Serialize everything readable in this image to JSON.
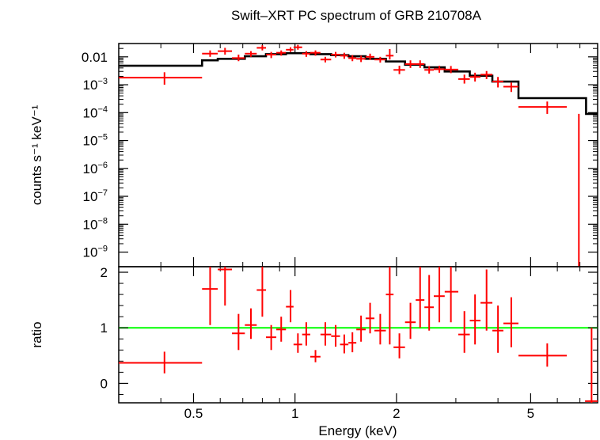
{
  "chart_data": {
    "type": "scatter",
    "title": "Swift–XRT PC spectrum of GRB 210708A",
    "xlabel": "Energy (keV)",
    "x_scale": "log",
    "xlim": [
      0.3,
      7.9
    ],
    "colors": {
      "data": "#ff0000",
      "model": "#000000",
      "unity": "#00ff00"
    },
    "top_panel": {
      "ylabel": "counts s⁻¹ keV⁻¹",
      "y_scale": "log",
      "ylim": [
        3e-10,
        0.03
      ],
      "y_ticks": [
        {
          "v": 0.01,
          "base": "0.01",
          "sup": ""
        },
        {
          "v": 0.001,
          "base": "10",
          "sup": "−3"
        },
        {
          "v": 0.0001,
          "base": "10",
          "sup": "−4"
        },
        {
          "v": 1e-05,
          "base": "10",
          "sup": "−5"
        },
        {
          "v": 1e-06,
          "base": "10",
          "sup": "−6"
        },
        {
          "v": 1e-07,
          "base": "10",
          "sup": "−7"
        },
        {
          "v": 1e-08,
          "base": "10",
          "sup": "−8"
        },
        {
          "v": 1e-09,
          "base": "10",
          "sup": "−9"
        }
      ],
      "data": [
        {
          "xlo": 0.3,
          "xhi": 0.53,
          "x": 0.41,
          "y": 0.0018,
          "ylo": 0.001,
          "yhi": 0.0028
        },
        {
          "xlo": 0.53,
          "xhi": 0.59,
          "x": 0.56,
          "y": 0.013,
          "ylo": 0.01,
          "yhi": 0.017
        },
        {
          "xlo": 0.59,
          "xhi": 0.65,
          "x": 0.62,
          "y": 0.016,
          "ylo": 0.012,
          "yhi": 0.021
        },
        {
          "xlo": 0.65,
          "xhi": 0.71,
          "x": 0.68,
          "y": 0.009,
          "ylo": 0.007,
          "yhi": 0.012
        },
        {
          "xlo": 0.71,
          "xhi": 0.77,
          "x": 0.74,
          "y": 0.013,
          "ylo": 0.01,
          "yhi": 0.016
        },
        {
          "xlo": 0.77,
          "xhi": 0.82,
          "x": 0.8,
          "y": 0.021,
          "ylo": 0.017,
          "yhi": 0.026
        },
        {
          "xlo": 0.82,
          "xhi": 0.88,
          "x": 0.85,
          "y": 0.012,
          "ylo": 0.009,
          "yhi": 0.015
        },
        {
          "xlo": 0.88,
          "xhi": 0.94,
          "x": 0.91,
          "y": 0.014,
          "ylo": 0.011,
          "yhi": 0.017
        },
        {
          "xlo": 0.94,
          "xhi": 0.99,
          "x": 0.97,
          "y": 0.018,
          "ylo": 0.015,
          "yhi": 0.022
        },
        {
          "xlo": 0.99,
          "xhi": 1.05,
          "x": 1.02,
          "y": 0.022,
          "ylo": 0.018,
          "yhi": 0.027
        },
        {
          "xlo": 1.05,
          "xhi": 1.11,
          "x": 1.08,
          "y": 0.013,
          "ylo": 0.01,
          "yhi": 0.016
        },
        {
          "xlo": 1.11,
          "xhi": 1.19,
          "x": 1.15,
          "y": 0.014,
          "ylo": 0.011,
          "yhi": 0.017
        },
        {
          "xlo": 1.19,
          "xhi": 1.28,
          "x": 1.23,
          "y": 0.008,
          "ylo": 0.0063,
          "yhi": 0.01
        },
        {
          "xlo": 1.28,
          "xhi": 1.36,
          "x": 1.32,
          "y": 0.012,
          "ylo": 0.0095,
          "yhi": 0.015
        },
        {
          "xlo": 1.36,
          "xhi": 1.44,
          "x": 1.4,
          "y": 0.011,
          "ylo": 0.0085,
          "yhi": 0.014
        },
        {
          "xlo": 1.44,
          "xhi": 1.52,
          "x": 1.48,
          "y": 0.009,
          "ylo": 0.007,
          "yhi": 0.0115
        },
        {
          "xlo": 1.52,
          "xhi": 1.62,
          "x": 1.57,
          "y": 0.0085,
          "ylo": 0.0065,
          "yhi": 0.011
        },
        {
          "xlo": 1.62,
          "xhi": 1.72,
          "x": 1.67,
          "y": 0.01,
          "ylo": 0.0078,
          "yhi": 0.013
        },
        {
          "xlo": 1.72,
          "xhi": 1.86,
          "x": 1.79,
          "y": 0.008,
          "ylo": 0.0062,
          "yhi": 0.01
        },
        {
          "xlo": 1.86,
          "xhi": 1.96,
          "x": 1.91,
          "y": 0.011,
          "ylo": 0.008,
          "yhi": 0.019
        },
        {
          "xlo": 1.96,
          "xhi": 2.12,
          "x": 2.04,
          "y": 0.0034,
          "ylo": 0.0024,
          "yhi": 0.0048
        },
        {
          "xlo": 2.12,
          "xhi": 2.28,
          "x": 2.2,
          "y": 0.0055,
          "ylo": 0.004,
          "yhi": 0.0075
        },
        {
          "xlo": 2.28,
          "xhi": 2.42,
          "x": 2.35,
          "y": 0.0055,
          "ylo": 0.004,
          "yhi": 0.0075
        },
        {
          "xlo": 2.42,
          "xhi": 2.58,
          "x": 2.5,
          "y": 0.0034,
          "ylo": 0.0025,
          "yhi": 0.0046
        },
        {
          "xlo": 2.58,
          "xhi": 2.78,
          "x": 2.68,
          "y": 0.0036,
          "ylo": 0.0027,
          "yhi": 0.0048
        },
        {
          "xlo": 2.78,
          "xhi": 3.05,
          "x": 2.9,
          "y": 0.0035,
          "ylo": 0.0026,
          "yhi": 0.0047
        },
        {
          "xlo": 3.05,
          "xhi": 3.3,
          "x": 3.18,
          "y": 0.0016,
          "ylo": 0.0011,
          "yhi": 0.0023
        },
        {
          "xlo": 3.3,
          "xhi": 3.55,
          "x": 3.42,
          "y": 0.0019,
          "ylo": 0.0013,
          "yhi": 0.0027
        },
        {
          "xlo": 3.55,
          "xhi": 3.85,
          "x": 3.7,
          "y": 0.0023,
          "ylo": 0.0016,
          "yhi": 0.0031
        },
        {
          "xlo": 3.85,
          "xhi": 4.15,
          "x": 4.0,
          "y": 0.0013,
          "ylo": 0.0008,
          "yhi": 0.0019
        },
        {
          "xlo": 4.15,
          "xhi": 4.6,
          "x": 4.38,
          "y": 0.00085,
          "ylo": 0.00055,
          "yhi": 0.0012
        },
        {
          "xlo": 4.6,
          "xhi": 6.4,
          "x": 5.6,
          "y": 0.00016,
          "ylo": 9e-05,
          "yhi": 0.00025
        },
        {
          "xlo": 6.4,
          "xhi": 6.4,
          "x": 6.95,
          "y": 9e-05,
          "ylo": 3e-10,
          "yhi": 9e-05
        }
      ],
      "model": [
        {
          "xlo": 0.3,
          "xhi": 0.53,
          "y": 0.0048
        },
        {
          "xlo": 0.53,
          "xhi": 0.59,
          "y": 0.0075
        },
        {
          "xlo": 0.59,
          "xhi": 0.71,
          "y": 0.0085
        },
        {
          "xlo": 0.71,
          "xhi": 0.82,
          "y": 0.0105
        },
        {
          "xlo": 0.82,
          "xhi": 0.94,
          "y": 0.0125
        },
        {
          "xlo": 0.94,
          "xhi": 1.11,
          "y": 0.0135
        },
        {
          "xlo": 1.11,
          "xhi": 1.28,
          "y": 0.0125
        },
        {
          "xlo": 1.28,
          "xhi": 1.44,
          "y": 0.0115
        },
        {
          "xlo": 1.44,
          "xhi": 1.62,
          "y": 0.0105
        },
        {
          "xlo": 1.62,
          "xhi": 1.86,
          "y": 0.0085
        },
        {
          "xlo": 1.86,
          "xhi": 2.12,
          "y": 0.0068
        },
        {
          "xlo": 2.12,
          "xhi": 2.42,
          "y": 0.0052
        },
        {
          "xlo": 2.42,
          "xhi": 2.78,
          "y": 0.0042
        },
        {
          "xlo": 2.78,
          "xhi": 3.3,
          "y": 0.003
        },
        {
          "xlo": 3.3,
          "xhi": 3.85,
          "y": 0.0021
        },
        {
          "xlo": 3.85,
          "xhi": 4.6,
          "y": 0.0013
        },
        {
          "xlo": 4.6,
          "xhi": 7.3,
          "y": 0.00033
        },
        {
          "xlo": 7.3,
          "xhi": 7.9,
          "y": 9e-05
        }
      ]
    },
    "bottom_panel": {
      "ylabel": "ratio",
      "y_scale": "linear",
      "ylim": [
        -0.35,
        2.1
      ],
      "y_ticks": [
        0,
        1,
        2
      ],
      "reference_line": 1,
      "data": [
        {
          "xlo": 0.3,
          "xhi": 0.53,
          "x": 0.41,
          "y": 0.37,
          "ylo": 0.18,
          "yhi": 0.57
        },
        {
          "xlo": 0.53,
          "xhi": 0.59,
          "x": 0.56,
          "y": 1.7,
          "ylo": 1.05,
          "yhi": 2.1
        },
        {
          "xlo": 0.59,
          "xhi": 0.65,
          "x": 0.62,
          "y": 2.05,
          "ylo": 1.4,
          "yhi": 2.1
        },
        {
          "xlo": 0.65,
          "xhi": 0.71,
          "x": 0.68,
          "y": 0.9,
          "ylo": 0.6,
          "yhi": 1.25
        },
        {
          "xlo": 0.71,
          "xhi": 0.77,
          "x": 0.74,
          "y": 1.05,
          "ylo": 0.8,
          "yhi": 1.35
        },
        {
          "xlo": 0.77,
          "xhi": 0.82,
          "x": 0.8,
          "y": 1.68,
          "ylo": 1.2,
          "yhi": 2.1
        },
        {
          "xlo": 0.82,
          "xhi": 0.88,
          "x": 0.85,
          "y": 0.83,
          "ylo": 0.6,
          "yhi": 1.05
        },
        {
          "xlo": 0.88,
          "xhi": 0.94,
          "x": 0.91,
          "y": 0.97,
          "ylo": 0.75,
          "yhi": 1.2
        },
        {
          "xlo": 0.94,
          "xhi": 0.99,
          "x": 0.97,
          "y": 1.38,
          "ylo": 1.1,
          "yhi": 1.68
        },
        {
          "xlo": 0.99,
          "xhi": 1.05,
          "x": 1.02,
          "y": 0.7,
          "ylo": 0.55,
          "yhi": 0.9
        },
        {
          "xlo": 1.05,
          "xhi": 1.11,
          "x": 1.08,
          "y": 0.88,
          "ylo": 0.68,
          "yhi": 1.1
        },
        {
          "xlo": 1.11,
          "xhi": 1.19,
          "x": 1.15,
          "y": 0.48,
          "ylo": 0.38,
          "yhi": 0.6
        },
        {
          "xlo": 1.19,
          "xhi": 1.28,
          "x": 1.23,
          "y": 0.88,
          "ylo": 0.68,
          "yhi": 1.1
        },
        {
          "xlo": 1.28,
          "xhi": 1.36,
          "x": 1.32,
          "y": 0.85,
          "ylo": 0.66,
          "yhi": 1.05
        },
        {
          "xlo": 1.36,
          "xhi": 1.44,
          "x": 1.4,
          "y": 0.7,
          "ylo": 0.54,
          "yhi": 0.88
        },
        {
          "xlo": 1.44,
          "xhi": 1.52,
          "x": 1.48,
          "y": 0.73,
          "ylo": 0.56,
          "yhi": 0.92
        },
        {
          "xlo": 1.52,
          "xhi": 1.62,
          "x": 1.57,
          "y": 0.97,
          "ylo": 0.75,
          "yhi": 1.22
        },
        {
          "xlo": 1.62,
          "xhi": 1.72,
          "x": 1.67,
          "y": 1.17,
          "ylo": 0.9,
          "yhi": 1.45
        },
        {
          "xlo": 1.72,
          "xhi": 1.86,
          "x": 1.79,
          "y": 0.95,
          "ylo": 0.7,
          "yhi": 1.25
        },
        {
          "xlo": 1.86,
          "xhi": 1.96,
          "x": 1.91,
          "y": 1.6,
          "ylo": 0.7,
          "yhi": 2.1
        },
        {
          "xlo": 1.96,
          "xhi": 2.12,
          "x": 2.04,
          "y": 0.65,
          "ylo": 0.45,
          "yhi": 0.9
        },
        {
          "xlo": 2.12,
          "xhi": 2.28,
          "x": 2.2,
          "y": 1.1,
          "ylo": 0.8,
          "yhi": 1.45
        },
        {
          "xlo": 2.28,
          "xhi": 2.42,
          "x": 2.35,
          "y": 1.5,
          "ylo": 1.0,
          "yhi": 2.1
        },
        {
          "xlo": 2.42,
          "xhi": 2.58,
          "x": 2.5,
          "y": 1.37,
          "ylo": 0.95,
          "yhi": 1.95
        },
        {
          "xlo": 2.58,
          "xhi": 2.78,
          "x": 2.68,
          "y": 1.57,
          "ylo": 1.1,
          "yhi": 2.1
        },
        {
          "xlo": 2.78,
          "xhi": 3.05,
          "x": 2.9,
          "y": 1.65,
          "ylo": 1.1,
          "yhi": 2.1
        },
        {
          "xlo": 3.05,
          "xhi": 3.3,
          "x": 3.18,
          "y": 0.88,
          "ylo": 0.55,
          "yhi": 1.3
        },
        {
          "xlo": 3.3,
          "xhi": 3.55,
          "x": 3.42,
          "y": 1.13,
          "ylo": 0.7,
          "yhi": 1.6
        },
        {
          "xlo": 3.55,
          "xhi": 3.85,
          "x": 3.7,
          "y": 1.45,
          "ylo": 0.95,
          "yhi": 2.05
        },
        {
          "xlo": 3.85,
          "xhi": 4.15,
          "x": 4.0,
          "y": 0.95,
          "ylo": 0.55,
          "yhi": 1.4
        },
        {
          "xlo": 4.15,
          "xhi": 4.6,
          "x": 4.38,
          "y": 1.08,
          "ylo": 0.65,
          "yhi": 1.55
        },
        {
          "xlo": 4.6,
          "xhi": 6.4,
          "x": 5.6,
          "y": 0.5,
          "ylo": 0.3,
          "yhi": 0.72
        },
        {
          "xlo": 7.25,
          "xhi": 7.9,
          "x": 7.58,
          "y": -0.32,
          "ylo": -0.35,
          "yhi": 1.0
        }
      ]
    }
  }
}
